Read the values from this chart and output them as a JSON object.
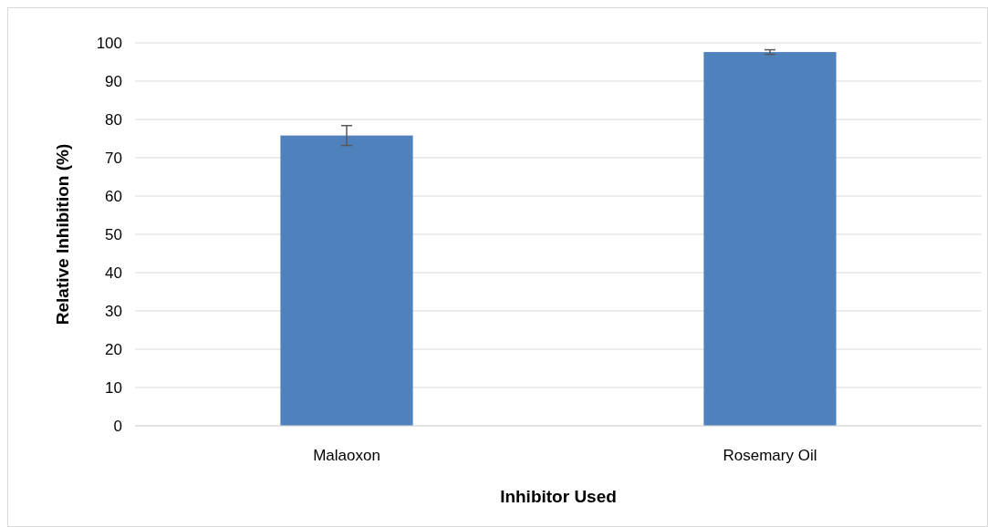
{
  "chart_data": {
    "type": "bar",
    "xlabel": "Inhibitor Used",
    "ylabel": "Relative Inhibition (%)",
    "categories": [
      "Malaoxon",
      "Rosemary Oil"
    ],
    "values": [
      75.8,
      97.6
    ],
    "errors": [
      2.6,
      0.6
    ],
    "color": "#4f81bd",
    "ylim": [
      0,
      100
    ],
    "yticks": [
      0,
      10,
      20,
      30,
      40,
      50,
      60,
      70,
      80,
      90,
      100
    ],
    "grid": "y"
  }
}
